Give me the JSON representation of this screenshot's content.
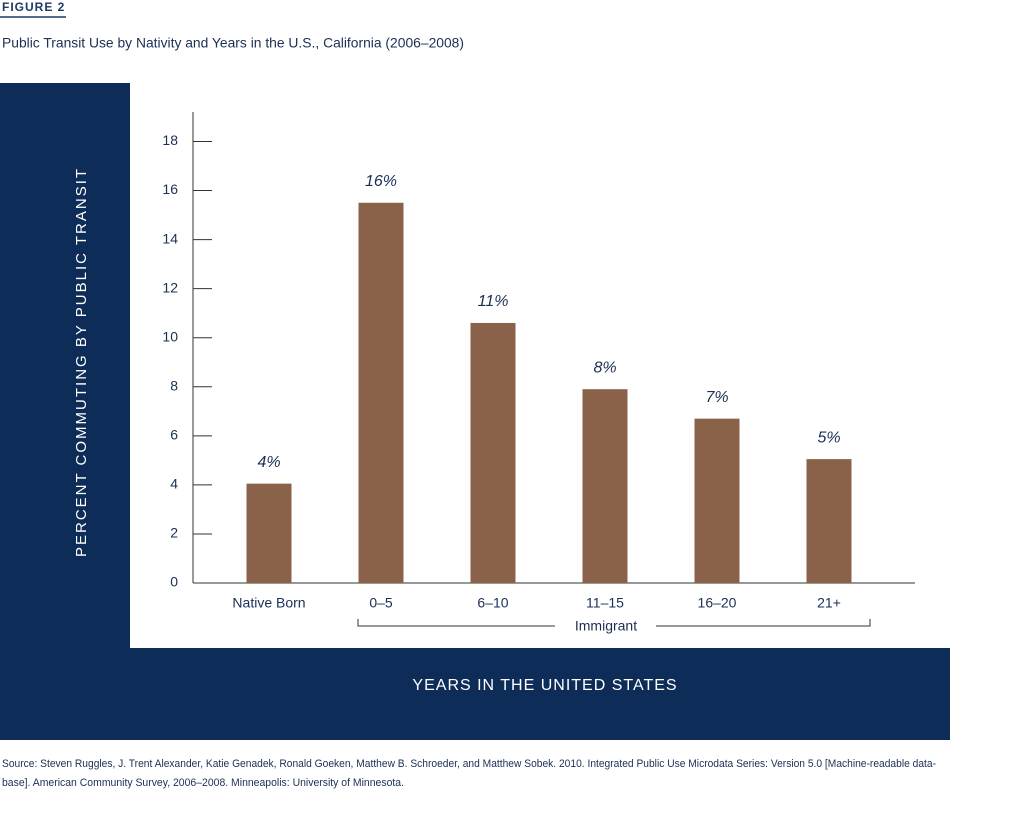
{
  "chart_data": {
    "type": "bar",
    "figure_label": "FIGURE 2",
    "title": "Public Transit Use by Nativity and Years in the U.S., California (2006–2008)",
    "ylabel": "PERCENT COMMUTING BY PUBLIC TRANSIT",
    "xlabel": "YEARS IN THE UNITED STATES",
    "group_label": "Immigrant",
    "categories": [
      "Native Born",
      "0–5",
      "6–10",
      "11–15",
      "16–20",
      "21+"
    ],
    "values": [
      4.05,
      15.5,
      10.6,
      7.9,
      6.7,
      5.05
    ],
    "value_labels": [
      "4%",
      "16%",
      "11%",
      "8%",
      "7%",
      "5%"
    ],
    "color": "#8a6149",
    "ylim": [
      0,
      19.2
    ],
    "yticks": [
      0,
      2,
      4,
      6,
      8,
      10,
      12,
      14,
      16,
      18
    ],
    "source": [
      "Source: Steven Ruggles, J. Trent Alexander, Katie Genadek, Ronald Goeken, Matthew B. Schroeder, and Matthew Sobek. 2010. Integrated Public Use Microdata Series: Version 5.0 [Machine-readable data-",
      "base]. American Community Survey, 2006–2008. Minneapolis: University of Minnesota."
    ]
  }
}
